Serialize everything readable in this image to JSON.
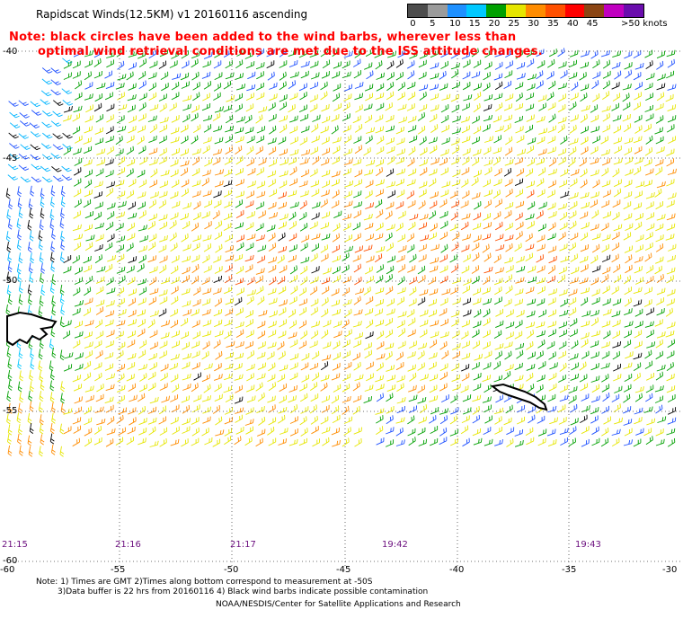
{
  "header": {
    "title": "Rapidscat Winds(12.5KM) v1 20160116 ascending",
    "note_line1": "Note: black circles have been added to the wind barbs, wherever less than",
    "note_line2": "optimal wind retrieval conditions are met due to the ISS attitude changes."
  },
  "legend": {
    "colors": [
      "#4d4d4d",
      "#9b9b9b",
      "#1e90ff",
      "#00c8ff",
      "#00a000",
      "#e6e600",
      "#ff8c00",
      "#ff5000",
      "#ff0000",
      "#8b4513",
      "#c000c0",
      "#6a0dad"
    ],
    "labels": [
      "0",
      "5",
      "10",
      "15",
      "20",
      "25",
      "30",
      "35",
      "40",
      "45",
      ">50 knots"
    ]
  },
  "map": {
    "lon_labels": [
      "-60",
      "-55",
      "-50",
      "-45",
      "-40",
      "-35",
      "-30"
    ],
    "lat_labels": [
      "-40",
      "-45",
      "-50",
      "-55",
      "-60"
    ],
    "time_labels": [
      "21:15",
      "21:16",
      "21:17",
      "19:42",
      "19:43"
    ]
  },
  "footer": {
    "line1": "Note: 1) Times are GMT 2)Times along bottom correspond to measurement at -50S",
    "line2": "3)Data buffer is 22 hrs from 20160116 4) Black wind barbs indicate possible contamination",
    "line3": "NOAA/NESDIS/Center for Satellite Applications and Research"
  }
}
